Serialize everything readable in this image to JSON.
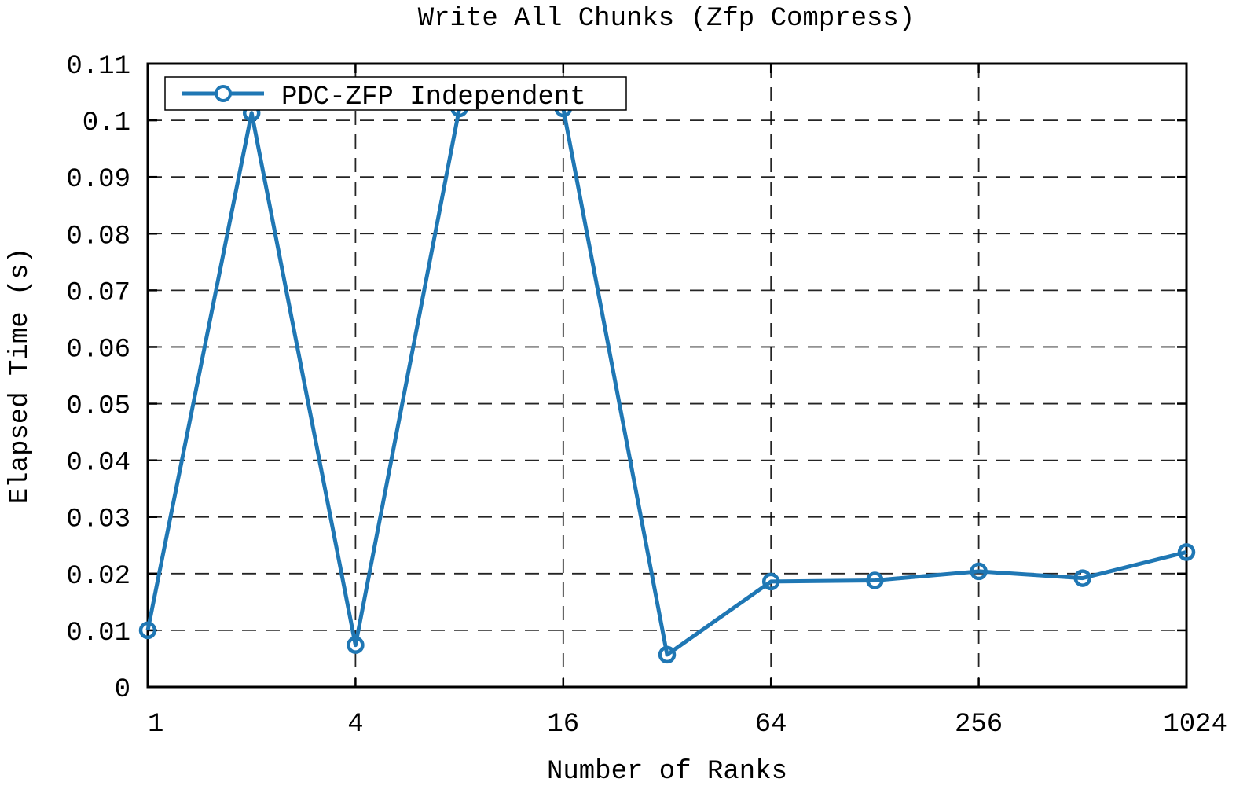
{
  "chart_data": {
    "type": "line",
    "title": "Write All Chunks (Zfp Compress)",
    "xlabel": "Number of Ranks",
    "ylabel": "Elapsed Time (s)",
    "x_scale": "log2",
    "xlim": [
      1,
      1024
    ],
    "ylim": [
      0,
      0.11
    ],
    "x_ticks": [
      1,
      4,
      16,
      64,
      256,
      1024
    ],
    "x_tick_labels": [
      "1",
      "4",
      "16",
      "64",
      "256",
      "1024"
    ],
    "y_ticks": [
      0,
      0.01,
      0.02,
      0.03,
      0.04,
      0.05,
      0.06,
      0.07,
      0.08,
      0.09,
      0.1,
      0.11
    ],
    "y_tick_labels": [
      "0",
      "0.01",
      "0.02",
      "0.03",
      "0.04",
      "0.05",
      "0.06",
      "0.07",
      "0.08",
      "0.09",
      "0.1",
      "0.11"
    ],
    "grid": true,
    "legend_position": "top-left",
    "series": [
      {
        "name": "PDC-ZFP Independent",
        "color": "#1f77b4",
        "marker": "circle",
        "x": [
          1,
          2,
          4,
          8,
          16,
          32,
          64,
          128,
          256,
          512,
          1024
        ],
        "y": [
          0.01,
          0.1013,
          0.0074,
          0.1021,
          0.1021,
          0.0057,
          0.0186,
          0.0188,
          0.0204,
          0.0192,
          0.0238
        ]
      }
    ]
  }
}
